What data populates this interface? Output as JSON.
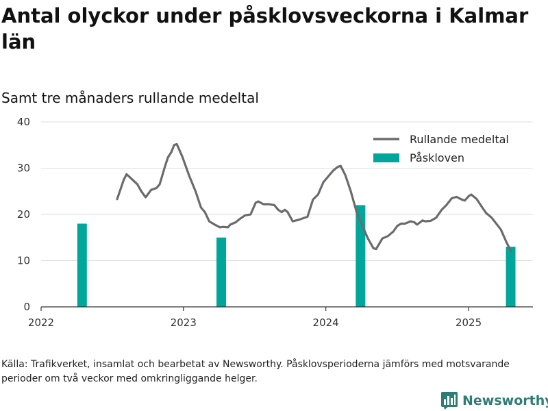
{
  "header": {
    "title": "Antal olyckor under påsklovsveckorna i Kalmar län",
    "subtitle": "Samt tre månaders rullande medeltal"
  },
  "footer": {
    "source": "Källa: Trafikverket, insamlat och bearbetat av Newsworthy. Påsklovsperioderna jämförs med motsvarande perioder om två veckor med omkringliggande helger.",
    "brand": "Newsworthy",
    "brand_icon": "newsworthy-logo-icon"
  },
  "colors": {
    "line": "#6b6b6f",
    "bars": "#00a59b",
    "grid": "#dddddd",
    "axis": "#333333",
    "brand": "#2e7d74"
  },
  "chart_data": {
    "type": "bar+line",
    "title": "Antal olyckor under påsklovsveckorna i Kalmar län",
    "subtitle": "Samt tre månaders rullande medeltal",
    "xlabel": "",
    "ylabel": "",
    "x_ticks": [
      "2022",
      "2023",
      "2024",
      "2025"
    ],
    "y_ticks": [
      0,
      10,
      20,
      30,
      40
    ],
    "ylim": [
      0,
      40
    ],
    "xlim": [
      "2022-01-01",
      "2025-06-15"
    ],
    "grid": true,
    "legend": "top-right",
    "series": [
      {
        "name": "Rullande medeltal",
        "type": "line",
        "points": [
          [
            "2022-07-15",
            23.3
          ],
          [
            "2022-08-01",
            27.5
          ],
          [
            "2022-08-08",
            28.7
          ],
          [
            "2022-08-22",
            27.6
          ],
          [
            "2022-09-05",
            26.5
          ],
          [
            "2022-09-15",
            25.0
          ],
          [
            "2022-09-26",
            23.7
          ],
          [
            "2022-10-10",
            25.3
          ],
          [
            "2022-10-24",
            25.7
          ],
          [
            "2022-11-01",
            26.5
          ],
          [
            "2022-11-15",
            30.5
          ],
          [
            "2022-11-22",
            32.3
          ],
          [
            "2022-12-01",
            33.5
          ],
          [
            "2022-12-08",
            35.0
          ],
          [
            "2022-12-15",
            35.2
          ],
          [
            "2022-12-29",
            32.5
          ],
          [
            "2023-01-15",
            28.5
          ],
          [
            "2023-02-01",
            25.0
          ],
          [
            "2023-02-15",
            21.5
          ],
          [
            "2023-02-25",
            20.5
          ],
          [
            "2023-03-08",
            18.5
          ],
          [
            "2023-03-22",
            17.8
          ],
          [
            "2023-04-05",
            17.2
          ],
          [
            "2023-04-12",
            17.3
          ],
          [
            "2023-04-25",
            17.2
          ],
          [
            "2023-05-01",
            17.8
          ],
          [
            "2023-05-15",
            18.3
          ],
          [
            "2023-05-25",
            19.0
          ],
          [
            "2023-06-08",
            19.8
          ],
          [
            "2023-06-22",
            20.0
          ],
          [
            "2023-07-05",
            22.5
          ],
          [
            "2023-07-12",
            22.8
          ],
          [
            "2023-07-25",
            22.2
          ],
          [
            "2023-08-08",
            22.2
          ],
          [
            "2023-08-22",
            22.0
          ],
          [
            "2023-09-01",
            21.0
          ],
          [
            "2023-09-10",
            20.5
          ],
          [
            "2023-09-18",
            21.0
          ],
          [
            "2023-09-25",
            20.5
          ],
          [
            "2023-10-08",
            18.5
          ],
          [
            "2023-10-22",
            18.8
          ],
          [
            "2023-11-05",
            19.2
          ],
          [
            "2023-11-15",
            19.5
          ],
          [
            "2023-11-29",
            23.2
          ],
          [
            "2023-12-12",
            24.3
          ],
          [
            "2023-12-26",
            27.0
          ],
          [
            "2024-01-10",
            28.5
          ],
          [
            "2024-01-20",
            29.5
          ],
          [
            "2024-02-01",
            30.3
          ],
          [
            "2024-02-08",
            30.5
          ],
          [
            "2024-02-20",
            28.5
          ],
          [
            "2024-03-05",
            25.0
          ],
          [
            "2024-03-20",
            20.5
          ],
          [
            "2024-04-04",
            17.5
          ],
          [
            "2024-04-18",
            14.8
          ],
          [
            "2024-05-02",
            12.7
          ],
          [
            "2024-05-09",
            12.5
          ],
          [
            "2024-05-25",
            14.8
          ],
          [
            "2024-06-08",
            15.3
          ],
          [
            "2024-06-22",
            16.3
          ],
          [
            "2024-07-02",
            17.5
          ],
          [
            "2024-07-12",
            18.0
          ],
          [
            "2024-07-22",
            18.0
          ],
          [
            "2024-08-05",
            18.5
          ],
          [
            "2024-08-15",
            18.3
          ],
          [
            "2024-08-22",
            17.8
          ],
          [
            "2024-09-05",
            18.7
          ],
          [
            "2024-09-12",
            18.5
          ],
          [
            "2024-09-26",
            18.6
          ],
          [
            "2024-10-10",
            19.3
          ],
          [
            "2024-10-24",
            21.0
          ],
          [
            "2024-11-05",
            22.0
          ],
          [
            "2024-11-19",
            23.5
          ],
          [
            "2024-12-01",
            23.8
          ],
          [
            "2024-12-15",
            23.2
          ],
          [
            "2024-12-22",
            23.0
          ],
          [
            "2025-01-02",
            24.0
          ],
          [
            "2025-01-08",
            24.3
          ],
          [
            "2025-01-22",
            23.3
          ],
          [
            "2025-02-05",
            21.5
          ],
          [
            "2025-02-15",
            20.3
          ],
          [
            "2025-03-01",
            19.3
          ],
          [
            "2025-03-15",
            17.8
          ],
          [
            "2025-03-25",
            16.7
          ],
          [
            "2025-04-08",
            14.0
          ],
          [
            "2025-04-20",
            12.0
          ]
        ]
      },
      {
        "name": "Påskloven",
        "type": "bar",
        "points": [
          [
            "2022-04-16",
            18
          ],
          [
            "2023-04-08",
            15
          ],
          [
            "2024-03-30",
            22
          ],
          [
            "2025-04-19",
            13
          ]
        ]
      }
    ]
  }
}
